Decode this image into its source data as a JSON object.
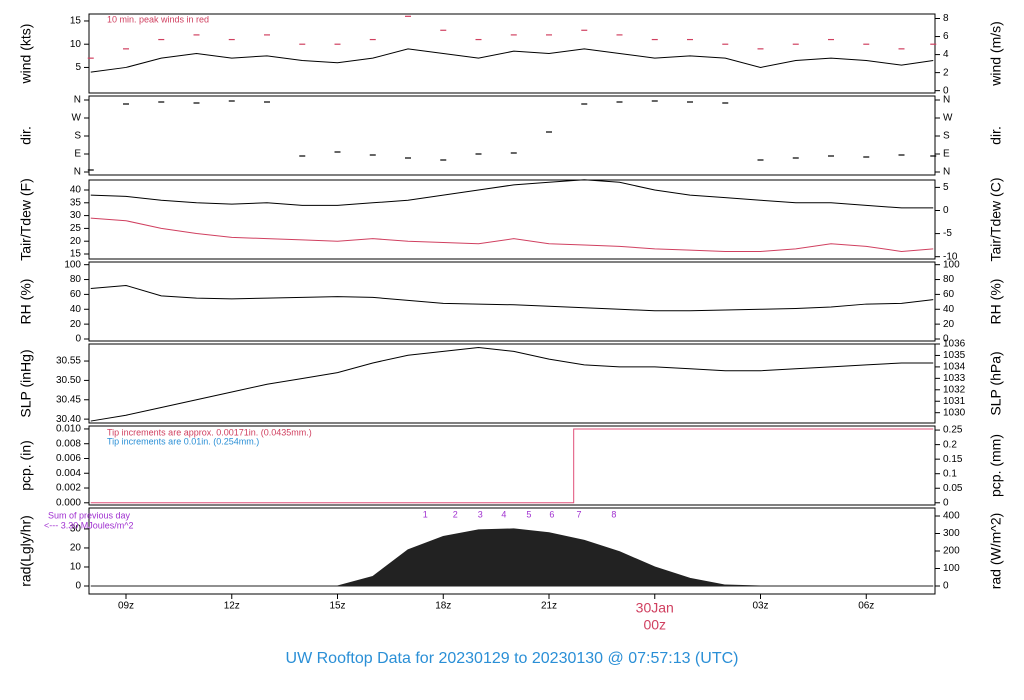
{
  "title": "UW Rooftop Data for 20230129  to  20230130 @ 07:57:13  (UTC)",
  "title_color": "#2a8fd6",
  "chart_data": [
    {
      "type": "line",
      "y_label": "wind (kts)",
      "y2_label": "wind (m/s)",
      "xlim": [
        7.95,
        31.95
      ],
      "ylim": [
        -0.5,
        16.5
      ],
      "yticks": [
        5,
        10,
        15
      ],
      "y2lim": [
        -0.26,
        8.5
      ],
      "y2ticks": [
        0,
        2,
        4,
        6,
        8
      ],
      "annotations": [
        {
          "text": "10 min. peak winds in red",
          "color": "#d04060"
        }
      ],
      "x": [
        8,
        9,
        10,
        11,
        12,
        13,
        14,
        15,
        16,
        17,
        18,
        19,
        20,
        21,
        22,
        23,
        24,
        25,
        26,
        27,
        28,
        29,
        30,
        31,
        31.9
      ],
      "series": [
        {
          "color": "#000000",
          "kind": "line",
          "values": [
            4,
            5,
            7,
            8,
            7,
            7.5,
            6.5,
            6,
            7,
            9,
            8,
            7,
            8.5,
            8,
            9,
            8,
            7,
            7.5,
            7,
            5,
            6.5,
            7,
            6.5,
            5.5,
            6.5
          ]
        },
        {
          "color": "#d04060",
          "kind": "dash",
          "values": [
            7,
            9,
            11,
            12,
            11,
            12,
            10,
            10,
            11,
            16,
            13,
            11,
            12,
            12,
            13,
            12,
            11,
            11,
            10,
            9,
            10,
            11,
            10,
            9,
            10
          ]
        }
      ]
    },
    {
      "type": "scatter",
      "y_label": "dir.",
      "y2_label": "dir.",
      "xlim": [
        7.95,
        31.95
      ],
      "ylim": [
        -15,
        380
      ],
      "yticks": [
        {
          "value": 0,
          "label": "N"
        },
        {
          "value": 90,
          "label": "E"
        },
        {
          "value": 180,
          "label": "S"
        },
        {
          "value": 270,
          "label": "W"
        },
        {
          "value": 360,
          "label": "N"
        }
      ],
      "y2lim": [
        -15,
        380
      ],
      "y2ticks": [
        {
          "value": 0,
          "label": "N"
        },
        {
          "value": 90,
          "label": "E"
        },
        {
          "value": 180,
          "label": "S"
        },
        {
          "value": 270,
          "label": "W"
        },
        {
          "value": 360,
          "label": "N"
        }
      ],
      "x": [
        8,
        9,
        10,
        11,
        12,
        13,
        14,
        15,
        16,
        17,
        18,
        19,
        20,
        21,
        22,
        23,
        24,
        25,
        26,
        27,
        28,
        29,
        30,
        31,
        31.9
      ],
      "series": [
        {
          "color": "#000000",
          "kind": "dash",
          "values": [
            10,
            340,
            350,
            345,
            355,
            350,
            80,
            100,
            85,
            70,
            60,
            90,
            95,
            200,
            340,
            350,
            355,
            350,
            345,
            60,
            70,
            80,
            75,
            85,
            80
          ]
        }
      ]
    },
    {
      "type": "line",
      "y_label": "Tair/Tdew (F)",
      "y2_label": "Tair/Tdew (C)",
      "xlim": [
        7.95,
        31.95
      ],
      "ylim": [
        13.05,
        43.9
      ],
      "yticks": [
        15,
        20,
        25,
        30,
        35,
        40
      ],
      "y2lim": [
        -10.5,
        6.6
      ],
      "y2ticks": [
        -10,
        -5,
        0,
        5
      ],
      "x": [
        8,
        9,
        10,
        11,
        12,
        13,
        14,
        15,
        16,
        17,
        18,
        19,
        20,
        21,
        22,
        23,
        24,
        25,
        26,
        27,
        28,
        29,
        30,
        31,
        31.9
      ],
      "series": [
        {
          "color": "#000000",
          "kind": "line",
          "values": [
            38,
            37.5,
            36,
            35,
            34.5,
            35,
            34,
            34,
            35,
            36,
            38,
            40,
            42,
            43,
            44,
            43,
            40,
            38,
            37,
            36,
            35,
            35,
            34,
            33,
            33
          ]
        },
        {
          "color": "#d04060",
          "kind": "line",
          "values": [
            29,
            28,
            25,
            23,
            21.5,
            21,
            20.5,
            20,
            21,
            20,
            19.5,
            19,
            21,
            19,
            18.5,
            18,
            17,
            16.5,
            16,
            16,
            17,
            19,
            18,
            16,
            17
          ]
        }
      ]
    },
    {
      "type": "line",
      "y_label": "RH (%)",
      "y2_label": "RH (%)",
      "xlim": [
        7.95,
        31.95
      ],
      "ylim": [
        -2.7,
        103.6
      ],
      "yticks": [
        0,
        20,
        40,
        60,
        80,
        100
      ],
      "y2lim": [
        -2.7,
        103.6
      ],
      "y2ticks": [
        0,
        20,
        40,
        60,
        80,
        100
      ],
      "x": [
        8,
        9,
        10,
        11,
        12,
        13,
        14,
        15,
        16,
        17,
        18,
        19,
        20,
        21,
        22,
        23,
        24,
        25,
        26,
        27,
        28,
        29,
        30,
        31,
        31.9
      ],
      "series": [
        {
          "color": "#000000",
          "kind": "line",
          "values": [
            68,
            72,
            58,
            55,
            54,
            55,
            56,
            57,
            56,
            52,
            48,
            47,
            46,
            44,
            42,
            40,
            38,
            38,
            39,
            40,
            41,
            43,
            47,
            48,
            53
          ]
        }
      ]
    },
    {
      "type": "line",
      "y_label": "SLP (inHg)",
      "y2_label": "SLP (hPa)",
      "xlim": [
        7.95,
        31.95
      ],
      "ylim": [
        30.39,
        30.594
      ],
      "yticks": [
        {
          "value": 30.4,
          "label": "30.40"
        },
        30.45,
        {
          "value": 30.5,
          "label": "30.50"
        },
        30.55
      ],
      "y2lim": [
        1029.1,
        1036.0
      ],
      "y2ticks": [
        1030,
        1031,
        1032,
        1033,
        1034,
        1035,
        1036
      ],
      "x": [
        8,
        9,
        10,
        11,
        12,
        13,
        14,
        15,
        16,
        17,
        18,
        19,
        20,
        21,
        22,
        23,
        24,
        25,
        26,
        27,
        28,
        29,
        30,
        31,
        31.9
      ],
      "series": [
        {
          "color": "#000000",
          "kind": "line",
          "values": [
            30.395,
            30.41,
            30.43,
            30.45,
            30.47,
            30.49,
            30.505,
            30.52,
            30.545,
            30.565,
            30.575,
            30.585,
            30.575,
            30.555,
            30.54,
            30.535,
            30.535,
            30.53,
            30.525,
            30.525,
            30.53,
            30.535,
            30.54,
            30.545,
            30.545
          ]
        }
      ]
    },
    {
      "type": "line",
      "y_label": "pcp. (in)",
      "y2_label": "pcp. (mm)",
      "xlim": [
        7.95,
        31.95
      ],
      "ylim": [
        -0.0003,
        0.0104
      ],
      "yticks": [
        {
          "value": 0,
          "label": "0.000"
        },
        0.002,
        0.004,
        0.006,
        0.008,
        {
          "value": 0.01,
          "label": "0.010"
        }
      ],
      "y2lim": [
        -0.0076,
        0.264
      ],
      "y2ticks": [
        0,
        0.05,
        0.1,
        0.15,
        0.2,
        0.25
      ],
      "annotations": [
        {
          "text": "Tip increments are approx. 0.00171in. (0.0435mm.)",
          "color": "#d04060"
        },
        {
          "text": "Tip increments are 0.01in. (0.254mm.)",
          "color": "#2a8fd6"
        }
      ],
      "x": [
        8,
        21.7,
        21.7,
        31.9
      ],
      "series": [
        {
          "color": "#e0507a",
          "kind": "line",
          "values": [
            0,
            0,
            0.01,
            0.01
          ]
        }
      ]
    },
    {
      "type": "area",
      "y_label": "rad(Lgly/hr)",
      "y2_label": "rad (W/m^2)",
      "xlim": [
        7.95,
        31.95
      ],
      "ylim": [
        -4.2,
        41
      ],
      "yticks": [
        0,
        10,
        20,
        30
      ],
      "y2lim": [
        -45.7,
        445.7
      ],
      "y2ticks": [
        0,
        100,
        200,
        300,
        400
      ],
      "xticks": [
        {
          "value": 9,
          "label": "09z"
        },
        {
          "value": 12,
          "label": "12z"
        },
        {
          "value": 15,
          "label": "15z"
        },
        {
          "value": 18,
          "label": "18z"
        },
        {
          "value": 21,
          "label": "21z"
        },
        {
          "value": 24,
          "label": "00z",
          "date": "30Jan"
        },
        {
          "value": 27,
          "label": "03z"
        },
        {
          "value": 30,
          "label": "06z"
        }
      ],
      "annotations": [
        {
          "text": "Sum of previous day",
          "color": "#a030d0"
        },
        {
          "text": "<--- 3.30 MJoules/m^2",
          "color": "#a030d0"
        }
      ],
      "hour_marks": {
        "color": "#a030d0",
        "labels": [
          "1",
          "2",
          "3",
          "4",
          "5",
          "6",
          "7",
          "8"
        ],
        "x": [
          17.49,
          18.34,
          19.05,
          19.72,
          20.43,
          21.08,
          21.85,
          22.84
        ]
      },
      "x": [
        8,
        9,
        10,
        11,
        12,
        13,
        14,
        15,
        16,
        17,
        18,
        19,
        20,
        21,
        22,
        23,
        24,
        25,
        26,
        27,
        28,
        29,
        30,
        31,
        31.9
      ],
      "series": [
        {
          "color": "#222222",
          "kind": "area",
          "values": [
            0,
            0,
            0,
            0,
            0,
            0,
            0,
            0,
            5,
            19,
            26,
            29.5,
            30,
            28,
            24,
            18,
            10,
            4,
            0.5,
            0,
            0,
            0,
            0,
            0,
            0
          ]
        }
      ]
    }
  ]
}
